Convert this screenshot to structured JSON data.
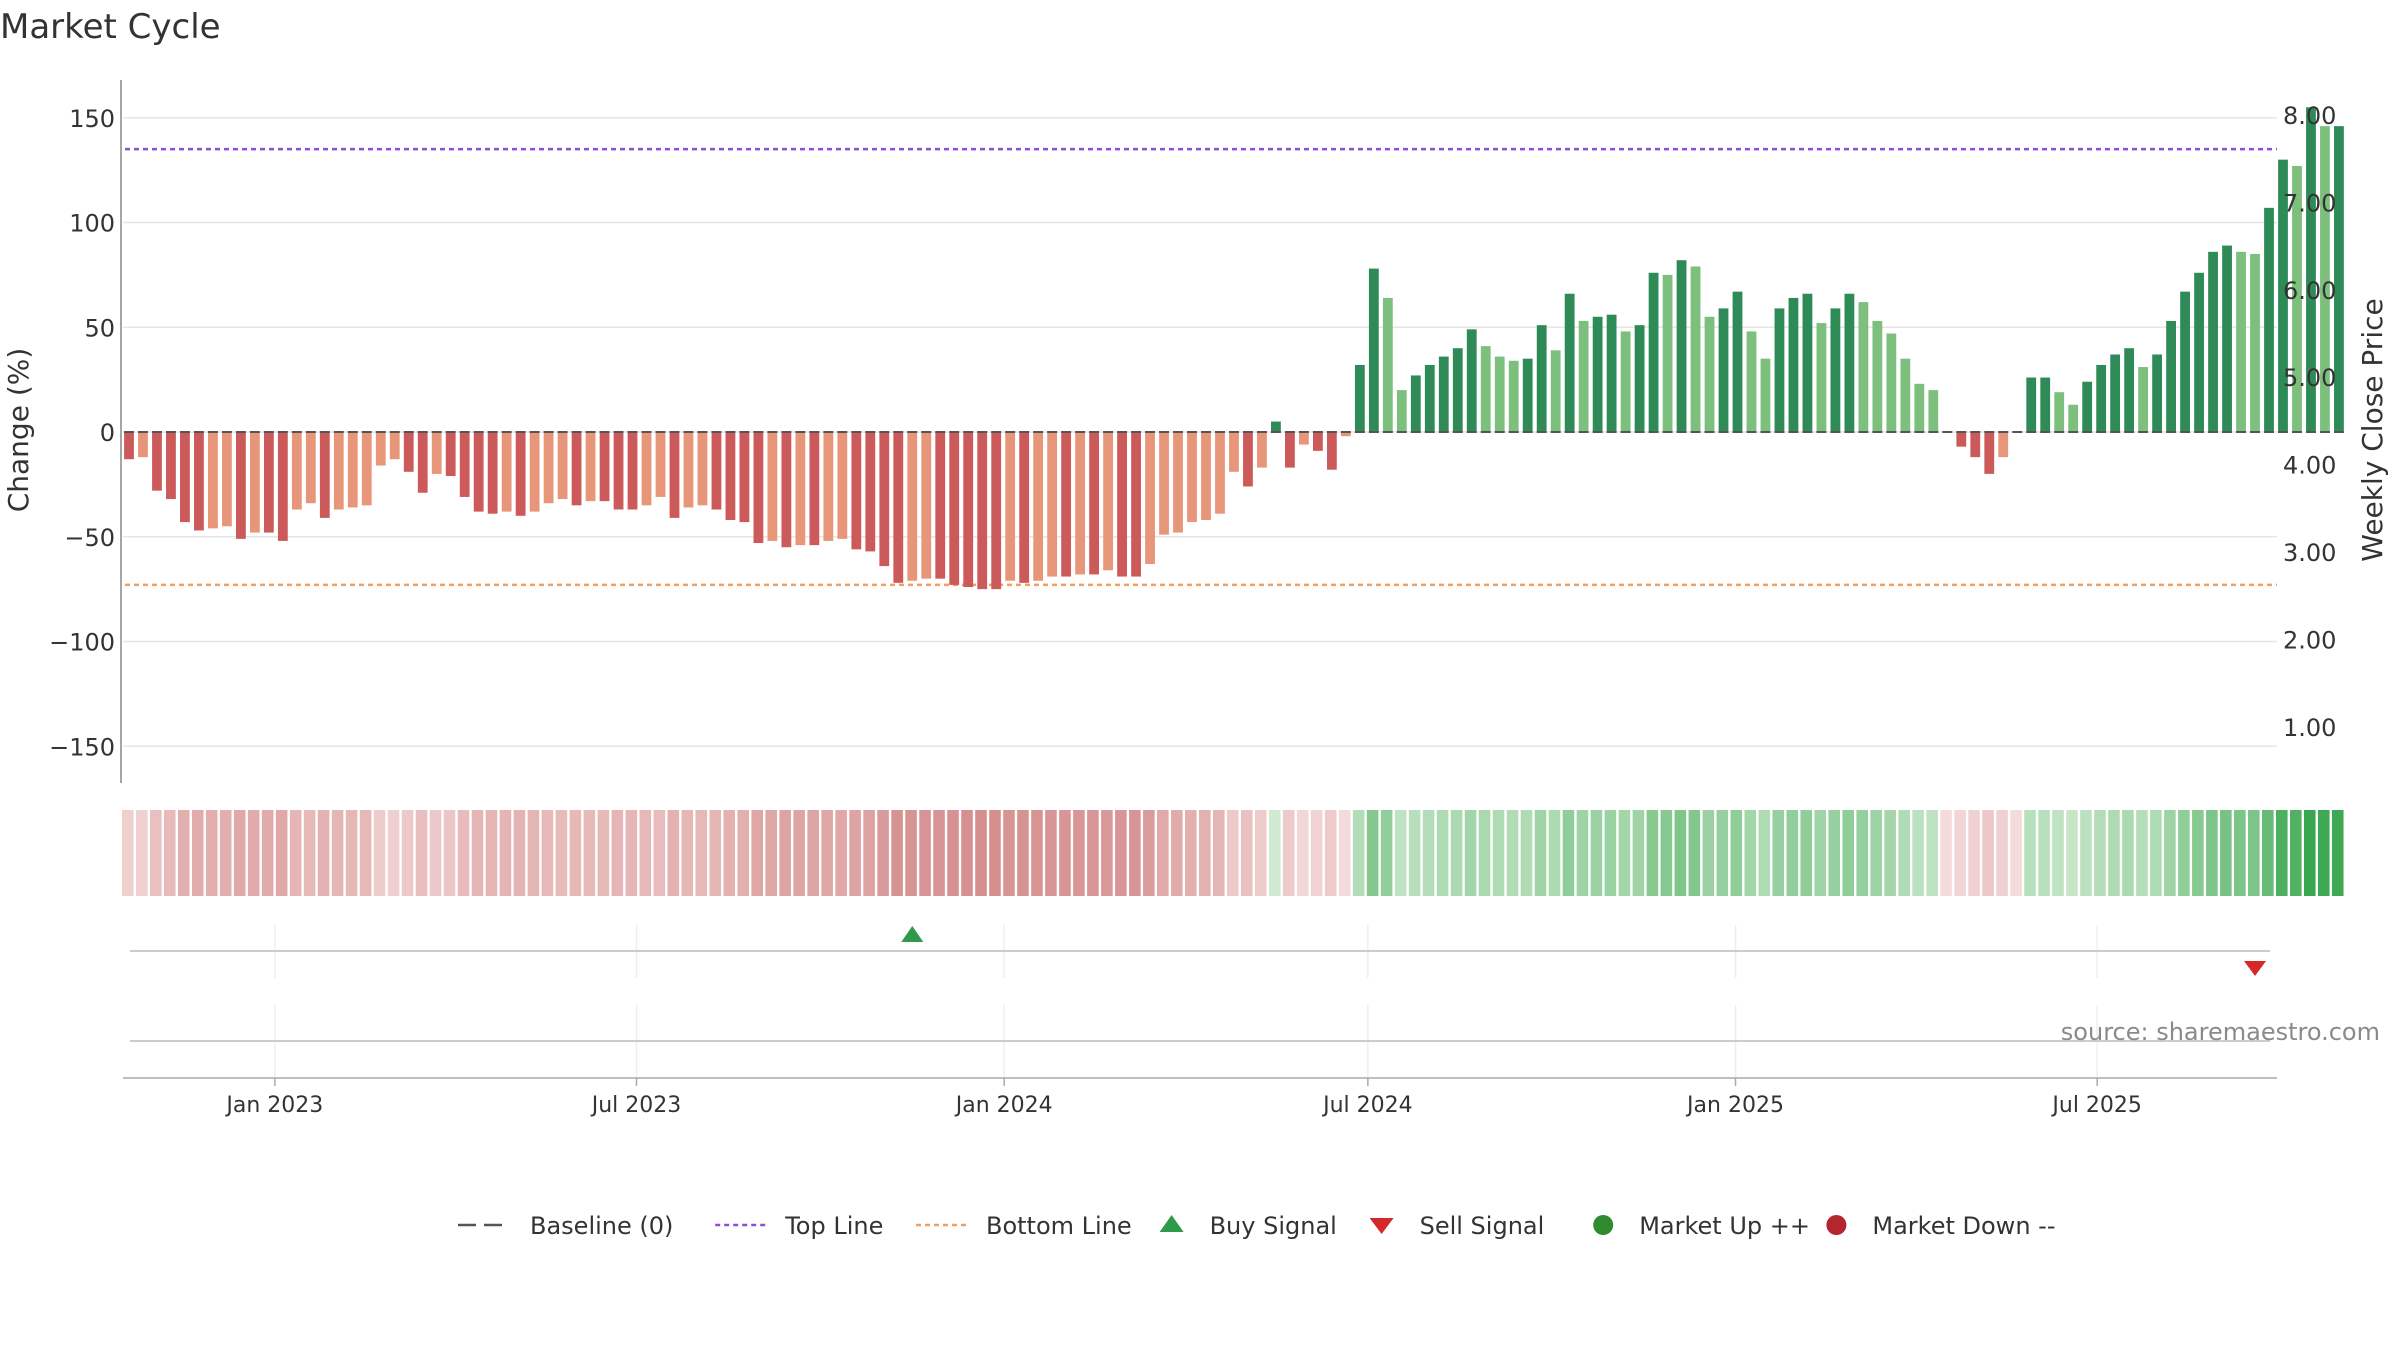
{
  "chart_data": {
    "type": "bar",
    "title": "Market Cycle",
    "ylabel_left": "Change (%)",
    "ylabel_right": "Weekly Close Price",
    "left_axis": {
      "ylim": [
        -168,
        168
      ],
      "ticks": [
        150,
        100,
        50,
        0,
        -50,
        -100,
        -150
      ],
      "tick_labels": [
        "150",
        "100",
        "50",
        "0",
        "−50",
        "−100",
        "−150"
      ]
    },
    "right_axis": {
      "ticks": [
        8,
        7,
        6,
        5,
        4,
        3,
        2,
        1
      ],
      "tick_labels": [
        "8.00",
        "7.00",
        "6.00",
        "5.00",
        "4.00",
        "3.00",
        "2.00",
        "1.00"
      ]
    },
    "top_line": 135,
    "bottom_line": -73,
    "baseline": 0,
    "x_start": "2022-10-17",
    "x_end": "2025-09-29",
    "x_ticks": [
      {
        "date": "2023-01-01",
        "label": "Jan 2023"
      },
      {
        "date": "2023-07-01",
        "label": "Jul 2023"
      },
      {
        "date": "2024-01-01",
        "label": "Jan 2024"
      },
      {
        "date": "2024-07-01",
        "label": "Jul 2024"
      },
      {
        "date": "2025-01-01",
        "label": "Jan 2025"
      },
      {
        "date": "2025-07-01",
        "label": "Jul 2025"
      }
    ],
    "series": [
      {
        "name": "Change",
        "start_date": "2022-10-20",
        "values": [
          -13,
          -12,
          -28,
          -32,
          -43,
          -47,
          -46,
          -45,
          -51,
          -48,
          -48,
          -52,
          -37,
          -34,
          -41,
          -37,
          -36,
          -35,
          -16,
          -13,
          -19,
          -29,
          -20,
          -21,
          -31,
          -38,
          -39,
          -38,
          -40,
          -38,
          -34,
          -32,
          -35,
          -33,
          -33,
          -37,
          -37,
          -35,
          -31,
          -41,
          -36,
          -35,
          -37,
          -42,
          -43,
          -53,
          -52,
          -55,
          -54,
          -54,
          -52,
          -51,
          -56,
          -57,
          -64,
          -72,
          -71,
          -70,
          -70,
          -73,
          -74,
          -75,
          -75,
          -71,
          -72,
          -71,
          -69,
          -69,
          -68,
          -68,
          -66,
          -69,
          -69,
          -63,
          -49,
          -48,
          -43,
          -42,
          -39,
          -19,
          -26,
          -17,
          5,
          -17,
          -6,
          -9,
          -18,
          -2,
          32,
          78,
          64,
          20,
          27,
          32,
          36,
          40,
          49,
          41,
          36,
          34,
          35,
          51,
          39,
          66,
          53,
          55,
          56,
          48,
          51,
          76,
          75,
          82,
          79,
          55,
          59,
          67,
          48,
          35,
          59,
          64,
          66,
          52,
          59,
          66,
          62,
          53,
          47,
          35,
          23,
          20,
          0,
          -7,
          -12,
          -20,
          -12,
          0,
          26,
          26,
          19,
          13,
          24,
          32,
          37,
          40,
          31,
          37,
          53,
          67,
          76,
          86,
          89,
          86,
          85,
          107,
          130,
          127,
          155,
          146,
          146
        ]
      }
    ],
    "signals": {
      "buy": [
        {
          "date": "2023-11-16",
          "label": "Buy Signal"
        }
      ],
      "sell": [
        {
          "date": "2025-09-18",
          "label": "Sell Signal"
        }
      ]
    },
    "legend": {
      "placement": "bottom",
      "items": [
        {
          "label": "Baseline (0)",
          "type": "dash",
          "color": "#555555"
        },
        {
          "label": "Top Line",
          "type": "dotted",
          "color": "#8a4fd6"
        },
        {
          "label": "Bottom Line",
          "type": "dotted",
          "color": "#f0a060"
        },
        {
          "label": "Buy Signal",
          "type": "triangle-up",
          "color": "#2e9b4a"
        },
        {
          "label": "Sell Signal",
          "type": "triangle-down",
          "color": "#d62828"
        },
        {
          "label": "Market Up ++",
          "type": "circle",
          "color": "#2e8b2e"
        },
        {
          "label": "Market Down --",
          "type": "circle",
          "color": "#b3262e"
        }
      ]
    },
    "colors": {
      "up_dark": "#2e8b57",
      "up_light": "#7dbf7d",
      "down_dark": "#cc5a5a",
      "down_light": "#e8967a",
      "top_line": "#8a4fd6",
      "bottom_line": "#f0a060"
    },
    "grid": true
  },
  "source": "source: sharemaestro.com"
}
